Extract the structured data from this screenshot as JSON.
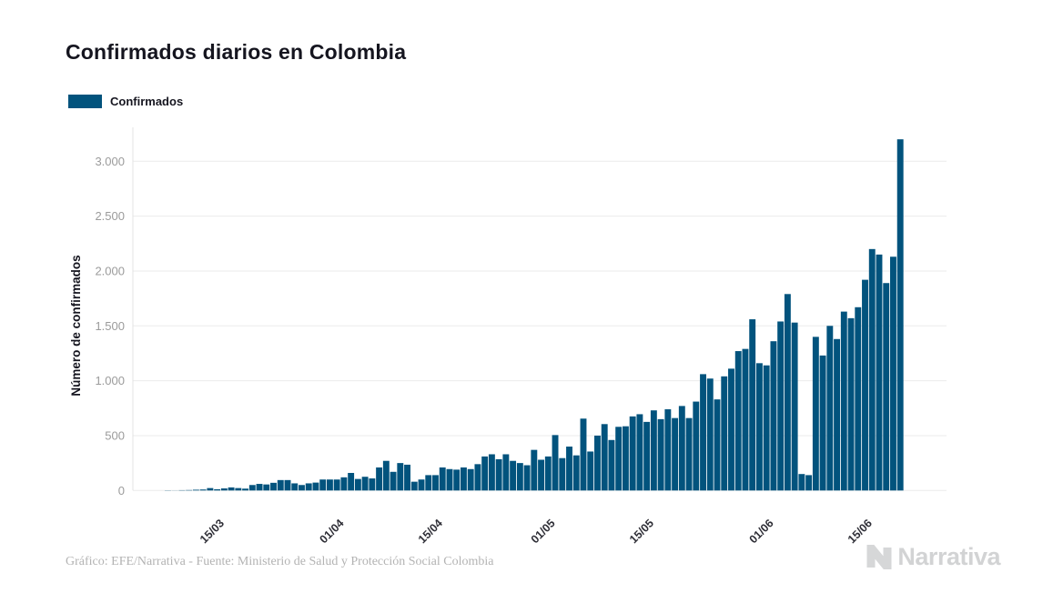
{
  "page": {
    "title": "Confirmados diarios en Colombia"
  },
  "legend": {
    "label": "Confirmados",
    "color": "#02537d"
  },
  "chart_data": {
    "type": "bar",
    "title": "Confirmados diarios en Colombia",
    "xlabel": "",
    "ylabel": "Número de confirmados",
    "ylim": [
      0,
      3200
    ],
    "grid": true,
    "legend_position": "top-left",
    "bar_color": "#02537d",
    "gridline_color": "#ebebeb",
    "axis_line_color": "#e3e3e3",
    "y_tick_color": "#9b9b9b",
    "x_tick_color": "#2e2e36",
    "y_ticks": [
      {
        "label": "0",
        "value": 0
      },
      {
        "label": "500",
        "value": 500
      },
      {
        "label": "1.000",
        "value": 1000
      },
      {
        "label": "1.500",
        "value": 1500
      },
      {
        "label": "2.000",
        "value": 2000
      },
      {
        "label": "2.500",
        "value": 2500
      },
      {
        "label": "3.000",
        "value": 3000
      }
    ],
    "x_ticks": [
      "15/03",
      "01/04",
      "15/04",
      "01/05",
      "15/05",
      "01/06",
      "15/06"
    ],
    "categories": [
      "09/03",
      "10/03",
      "11/03",
      "12/03",
      "13/03",
      "14/03",
      "15/03",
      "16/03",
      "17/03",
      "18/03",
      "19/03",
      "20/03",
      "21/03",
      "22/03",
      "23/03",
      "24/03",
      "25/03",
      "26/03",
      "27/03",
      "28/03",
      "29/03",
      "30/03",
      "31/03",
      "01/04",
      "02/04",
      "03/04",
      "04/04",
      "05/04",
      "06/04",
      "07/04",
      "08/04",
      "09/04",
      "10/04",
      "11/04",
      "12/04",
      "13/04",
      "14/04",
      "15/04",
      "16/04",
      "17/04",
      "18/04",
      "19/04",
      "20/04",
      "21/04",
      "22/04",
      "23/04",
      "24/04",
      "25/04",
      "26/04",
      "27/04",
      "28/04",
      "29/04",
      "30/04",
      "01/05",
      "02/05",
      "03/05",
      "04/05",
      "05/05",
      "06/05",
      "07/05",
      "08/05",
      "09/05",
      "10/05",
      "11/05",
      "12/05",
      "13/05",
      "14/05",
      "15/05",
      "16/05",
      "17/05",
      "18/05",
      "19/05",
      "20/05",
      "21/05",
      "22/05",
      "23/05",
      "24/05",
      "25/05",
      "26/05",
      "27/05",
      "28/05",
      "29/05",
      "30/05",
      "31/05",
      "01/06",
      "02/06",
      "03/06",
      "04/06",
      "05/06",
      "06/06",
      "07/06",
      "08/06",
      "09/06",
      "10/06",
      "11/06",
      "12/06",
      "13/06",
      "14/06",
      "15/06",
      "16/06",
      "17/06",
      "18/06",
      "19/06",
      "20/06",
      "21/06"
    ],
    "values": [
      2,
      1,
      3,
      4,
      7,
      9,
      22,
      11,
      19,
      28,
      22,
      17,
      50,
      60,
      55,
      70,
      95,
      95,
      65,
      50,
      65,
      72,
      100,
      100,
      100,
      120,
      160,
      105,
      125,
      110,
      210,
      270,
      170,
      250,
      235,
      80,
      100,
      140,
      140,
      210,
      195,
      190,
      210,
      195,
      240,
      310,
      330,
      285,
      330,
      270,
      250,
      230,
      370,
      280,
      310,
      505,
      295,
      400,
      320,
      655,
      355,
      500,
      605,
      460,
      580,
      585,
      675,
      695,
      625,
      730,
      650,
      740,
      660,
      770,
      660,
      810,
      1060,
      1020,
      830,
      1040,
      1110,
      1270,
      1290,
      1560,
      1160,
      1140,
      1360,
      1540,
      1790,
      1530,
      150,
      140,
      1400,
      1230,
      1500,
      1380,
      1630,
      1570,
      1670,
      1920,
      2200,
      2150,
      1890,
      2130,
      3200
    ]
  },
  "footer": {
    "credit": "Gráfico: EFE/Narrativa - Fuente: Ministerio de Salud y Protección Social Colombia",
    "logo_text": "Narrativa"
  }
}
